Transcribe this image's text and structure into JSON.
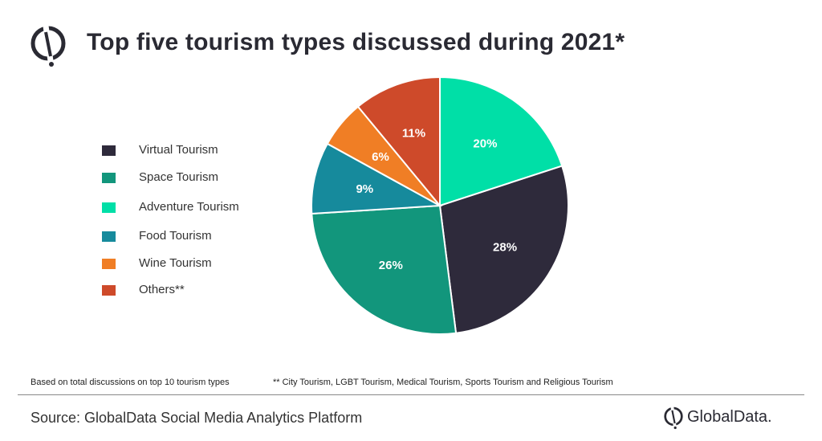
{
  "header": {
    "title": "Top five tourism types discussed during 2021*"
  },
  "chart_data": {
    "type": "pie",
    "title": "Top five tourism types discussed during 2021*",
    "legend_position": "left",
    "slices": [
      {
        "label": "Adventure Tourism",
        "value": 20,
        "value_label": "20%",
        "color": "#00dfa7"
      },
      {
        "label": "Virtual Tourism",
        "value": 28,
        "value_label": "28%",
        "color": "#2e2a3b"
      },
      {
        "label": "Space Tourism",
        "value": 26,
        "value_label": "26%",
        "color": "#12967c"
      },
      {
        "label": "Food Tourism",
        "value": 9,
        "value_label": "9%",
        "color": "#168a9c"
      },
      {
        "label": "Wine Tourism",
        "value": 6,
        "value_label": "6%",
        "color": "#f07e25"
      },
      {
        "label": "Others**",
        "value": 11,
        "value_label": "11%",
        "color": "#ce4a2a"
      }
    ],
    "legend_order": [
      "Virtual Tourism",
      "Space Tourism",
      "Adventure Tourism",
      "Food Tourism",
      "Wine Tourism",
      "Others**"
    ]
  },
  "footer": {
    "note_left": "Based on total discussions  on top 10  tourism types",
    "note_right": "** City Tourism, LGBT Tourism, Medical Tourism, Sports Tourism and Religious Tourism",
    "source": "Source: GlobalData Social Media Analytics Platform",
    "brand_name": "GlobalData."
  },
  "colors": {
    "title": "#2a2a33",
    "divider": "#888888",
    "slice_border": "#ffffff",
    "slice_label": "#ffffff"
  },
  "icons": {
    "header_logo": "globaldata-logo-icon",
    "footer_logo": "globaldata-logo-icon"
  }
}
